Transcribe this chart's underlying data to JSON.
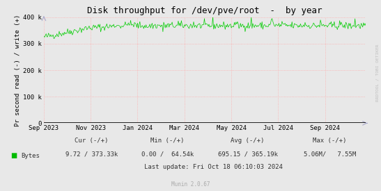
{
  "title": "Disk throughput for /dev/pve/root  -  by year",
  "ylabel": "Pr second read (-) / write (+)",
  "background_color": "#e8e8e8",
  "plot_bg_color": "#e8e8e8",
  "grid_color": "#ffaaaa",
  "line_color_bytes": "#00cc00",
  "zero_line_color": "#000000",
  "arrow_color": "#aaaacc",
  "ylim": [
    0,
    400000
  ],
  "yticks": [
    0,
    100000,
    200000,
    300000,
    400000
  ],
  "ytick_labels": [
    "0",
    "100 k",
    "200 k",
    "300 k",
    "400 k"
  ],
  "xtick_labels": [
    "Sep 2023",
    "Nov 2023",
    "Jan 2024",
    "Mar 2024",
    "May 2024",
    "Jul 2024",
    "Sep 2024"
  ],
  "xtick_positions": [
    0,
    61,
    122,
    183,
    244,
    305,
    366
  ],
  "total_points": 420,
  "legend_label": "Bytes",
  "legend_color": "#00bb00",
  "munin_label": "Munin 2.0.67",
  "rrdtool_label": "RRDTOOL / TOBI OETIKER",
  "title_fontsize": 9,
  "axis_fontsize": 6.5,
  "tick_fontsize": 6.5,
  "footer_fontsize": 6.5
}
